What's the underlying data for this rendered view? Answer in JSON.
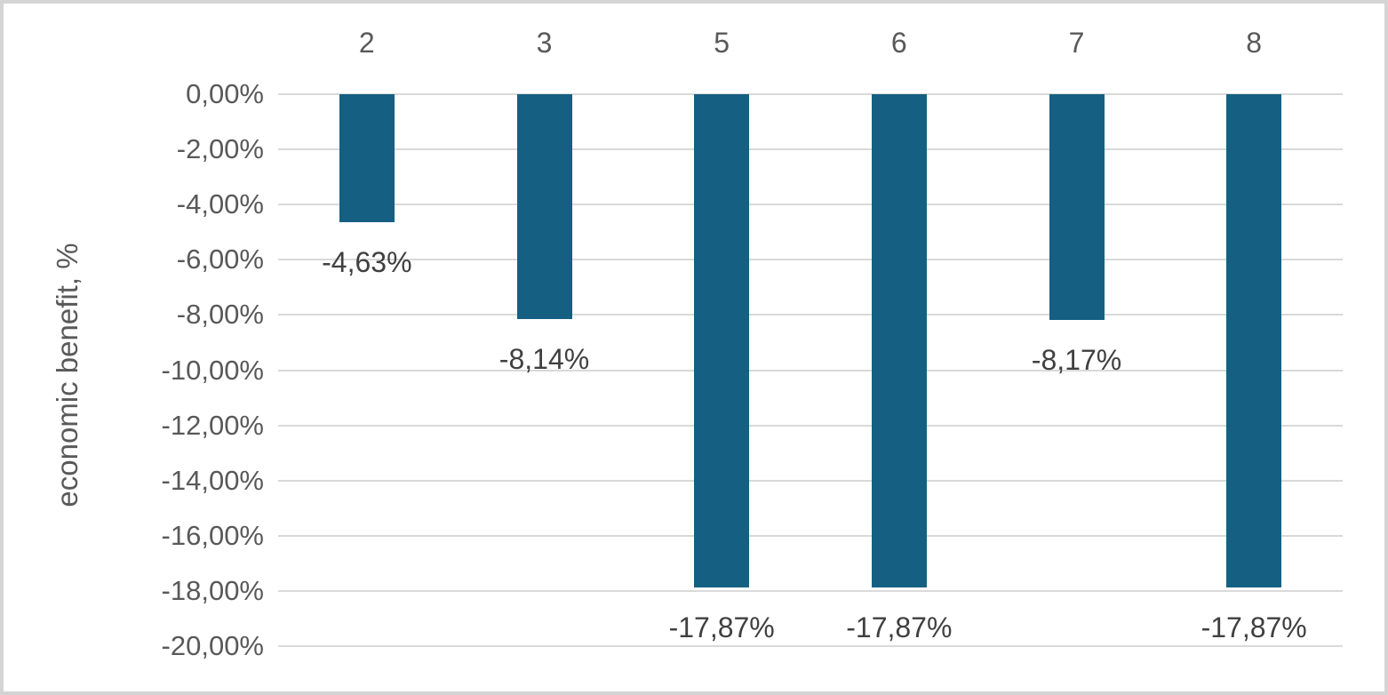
{
  "chart_data": {
    "type": "bar",
    "title": "",
    "xlabel": "",
    "ylabel": "economic benefit, %",
    "categories": [
      "2",
      "3",
      "5",
      "6",
      "7",
      "8"
    ],
    "values": [
      -4.63,
      -8.14,
      -17.87,
      -17.87,
      -8.17,
      -17.87
    ],
    "data_labels": [
      "-4,63%",
      "-8,14%",
      "-17,87%",
      "-17,87%",
      "-8,17%",
      "-17,87%"
    ],
    "y_ticks": [
      0,
      -2,
      -4,
      -6,
      -8,
      -10,
      -12,
      -14,
      -16,
      -18,
      -20
    ],
    "y_tick_labels": [
      "0,00%",
      "-2,00%",
      "-4,00%",
      "-6,00%",
      "-8,00%",
      "-10,00%",
      "-12,00%",
      "-14,00%",
      "-16,00%",
      "-18,00%",
      "-20,00%"
    ],
    "ylim": [
      -20,
      0
    ],
    "grid": true,
    "legend": false,
    "category_axis_position": "top",
    "data_label_position": "outside-end-below",
    "colors": {
      "bar": "#156082",
      "gridline": "#d9d9d9",
      "axis_text": "#595959",
      "data_label_text": "#404040",
      "frame_border": "#d4d4d4",
      "background": "#ffffff"
    }
  }
}
